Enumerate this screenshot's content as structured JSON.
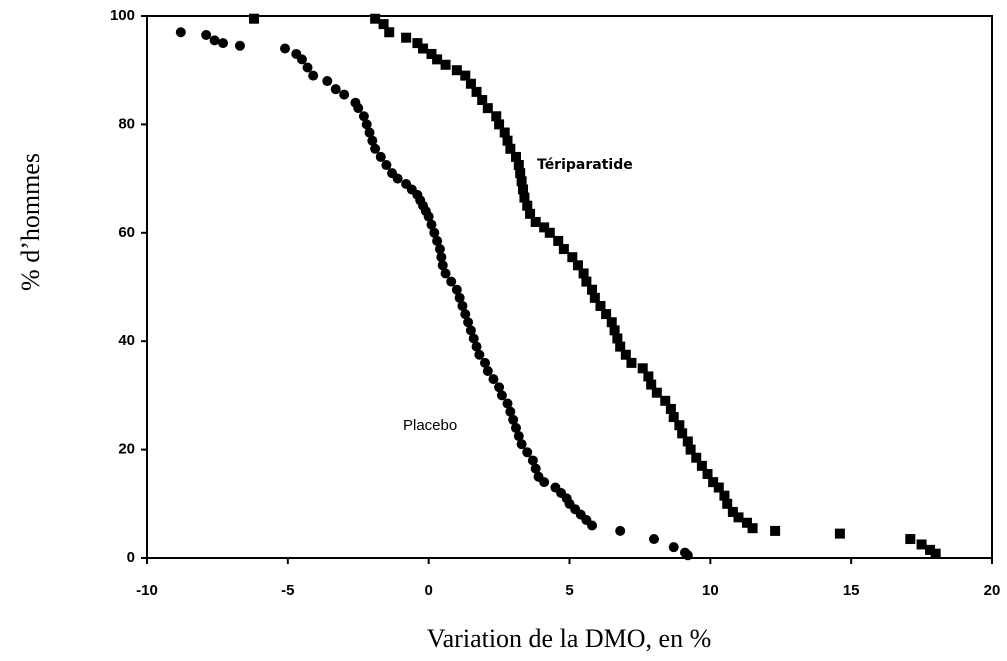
{
  "chart_data": {
    "type": "scatter",
    "xlabel": "Variation de la DMO, en %",
    "ylabel": "% d’hommes",
    "xlim": [
      -10,
      20
    ],
    "xticks": [
      -10,
      -5,
      0,
      5,
      10,
      15,
      20
    ],
    "ylim": [
      0,
      100
    ],
    "yticks": [
      0,
      20,
      40,
      60,
      80,
      100
    ],
    "series": [
      {
        "name": "Placebo",
        "marker": "circle",
        "color": "#000000",
        "x": [
          -8.8,
          -7.9,
          -7.6,
          -7.3,
          -6.7,
          -5.1,
          -4.7,
          -4.5,
          -4.3,
          -4.1,
          -3.6,
          -3.3,
          -3.0,
          -2.6,
          -2.5,
          -2.3,
          -2.2,
          -2.1,
          -2.0,
          -1.9,
          -1.7,
          -1.5,
          -1.3,
          -1.1,
          -0.8,
          -0.6,
          -0.4,
          -0.3,
          -0.2,
          -0.1,
          0.0,
          0.1,
          0.2,
          0.3,
          0.4,
          0.45,
          0.5,
          0.6,
          0.8,
          1.0,
          1.1,
          1.2,
          1.3,
          1.4,
          1.5,
          1.6,
          1.7,
          1.8,
          2.0,
          2.1,
          2.3,
          2.5,
          2.6,
          2.8,
          2.9,
          3.0,
          3.1,
          3.2,
          3.3,
          3.5,
          3.7,
          3.8,
          3.9,
          4.1,
          4.5,
          4.7,
          4.9,
          5.0,
          5.2,
          5.4,
          5.6,
          5.8,
          6.8,
          8.0,
          8.7,
          9.1,
          9.2
        ],
        "values": [
          97,
          96.5,
          95.5,
          95,
          94.5,
          94,
          93,
          92,
          90.5,
          89,
          88,
          86.5,
          85.5,
          84,
          83,
          81.5,
          80,
          78.5,
          77,
          75.5,
          74,
          72.5,
          71,
          70,
          69,
          68,
          67,
          66,
          65,
          64,
          63,
          61.5,
          60,
          58.5,
          57,
          55.5,
          54,
          52.5,
          51,
          49.5,
          48,
          46.5,
          45,
          43.5,
          42,
          40.5,
          39,
          37.5,
          36,
          34.5,
          33,
          31.5,
          30,
          28.5,
          27,
          25.5,
          24,
          22.5,
          21,
          19.5,
          18,
          16.5,
          15,
          14,
          13,
          12,
          11,
          10,
          9,
          8,
          7,
          6,
          5,
          3.5,
          2,
          1,
          0.5
        ]
      },
      {
        "name": "Tériparatide",
        "marker": "square",
        "color": "#000000",
        "x": [
          -6.2,
          -1.9,
          -1.6,
          -1.4,
          -0.8,
          -0.4,
          -0.2,
          0.1,
          0.3,
          0.6,
          1.0,
          1.3,
          1.5,
          1.7,
          1.9,
          2.1,
          2.4,
          2.5,
          2.7,
          2.8,
          2.9,
          3.1,
          3.2,
          3.25,
          3.3,
          3.35,
          3.4,
          3.5,
          3.6,
          3.8,
          4.1,
          4.3,
          4.6,
          4.8,
          5.1,
          5.3,
          5.5,
          5.6,
          5.8,
          5.9,
          6.1,
          6.3,
          6.5,
          6.6,
          6.7,
          6.8,
          7.0,
          7.2,
          7.6,
          7.8,
          7.9,
          8.1,
          8.4,
          8.6,
          8.7,
          8.9,
          9.0,
          9.2,
          9.3,
          9.5,
          9.7,
          9.9,
          10.1,
          10.3,
          10.5,
          10.6,
          10.8,
          11.0,
          11.3,
          11.5,
          12.3,
          14.6,
          17.1,
          17.5,
          17.8,
          18.0
        ],
        "values": [
          99.5,
          99.5,
          98.5,
          97,
          96,
          95,
          94,
          93,
          92,
          91,
          90,
          89,
          87.5,
          86,
          84.5,
          83,
          81.5,
          80,
          78.5,
          77,
          75.5,
          74,
          72.5,
          71,
          69.5,
          68,
          66.5,
          65,
          63.5,
          62,
          61,
          60,
          58.5,
          57,
          55.5,
          54,
          52.5,
          51,
          49.5,
          48,
          46.5,
          45,
          43.5,
          42,
          40.5,
          39,
          37.5,
          36,
          35,
          33.5,
          32,
          30.5,
          29,
          27.5,
          26,
          24.5,
          23,
          21.5,
          20,
          18.5,
          17,
          15.5,
          14,
          13,
          11.5,
          10,
          8.5,
          7.5,
          6.5,
          5.5,
          5,
          4.5,
          3.5,
          2.5,
          1.5,
          0.8
        ]
      }
    ]
  }
}
